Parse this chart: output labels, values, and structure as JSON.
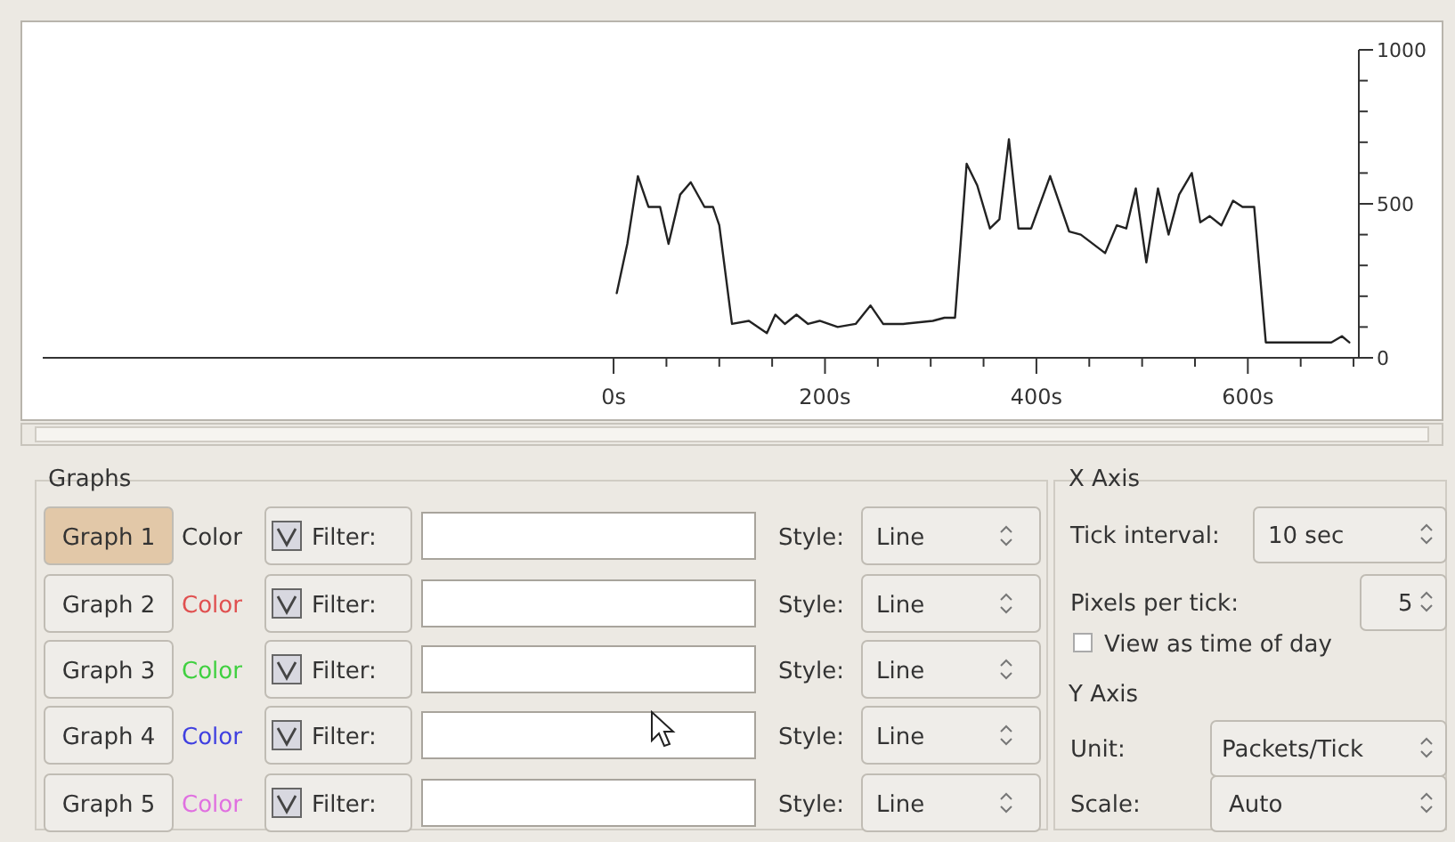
{
  "chart_data": [
    {
      "type": "line",
      "x": [
        3,
        13,
        23,
        33,
        44,
        52,
        63,
        73,
        86,
        94,
        100,
        112,
        128,
        145,
        153,
        162,
        173,
        184,
        195,
        212,
        229,
        243,
        255,
        274,
        302,
        313,
        323,
        334,
        344,
        356,
        365,
        374,
        383,
        395,
        413,
        431,
        442,
        465,
        476,
        485,
        494,
        504,
        515,
        525,
        535,
        547,
        555,
        564,
        575,
        586,
        595,
        606,
        617,
        634,
        656,
        679,
        689,
        696
      ],
      "series": [
        {
          "color": "#222222",
          "values": [
            210,
            370,
            590,
            490,
            490,
            370,
            530,
            570,
            490,
            490,
            430,
            110,
            120,
            80,
            140,
            110,
            140,
            110,
            120,
            100,
            110,
            170,
            110,
            110,
            120,
            130,
            130,
            630,
            560,
            420,
            450,
            710,
            420,
            420,
            590,
            410,
            400,
            340,
            430,
            420,
            550,
            310,
            550,
            400,
            530,
            600,
            440,
            460,
            430,
            510,
            490,
            490,
            50,
            50,
            50,
            50,
            70,
            50
          ]
        }
      ],
      "xlim": [
        -540,
        705
      ],
      "xticks": [
        {
          "value": 0,
          "label": "0s"
        },
        {
          "value": 50,
          "label": null
        },
        {
          "value": 100,
          "label": null
        },
        {
          "value": 150,
          "label": null
        },
        {
          "value": 200,
          "label": "200s"
        },
        {
          "value": 250,
          "label": null
        },
        {
          "value": 300,
          "label": null
        },
        {
          "value": 350,
          "label": null
        },
        {
          "value": 400,
          "label": "400s"
        },
        {
          "value": 450,
          "label": null
        },
        {
          "value": 500,
          "label": null
        },
        {
          "value": 550,
          "label": null
        },
        {
          "value": 600,
          "label": "600s"
        },
        {
          "value": 650,
          "label": null
        },
        {
          "value": 700,
          "label": null
        }
      ],
      "ylim": [
        0,
        1000
      ],
      "yticks": [
        0,
        {
          "value": 100,
          "label": null
        },
        {
          "value": 200,
          "label": null
        },
        {
          "value": 300,
          "label": null
        },
        {
          "value": 400,
          "label": null
        },
        500,
        {
          "value": 600,
          "label": null
        },
        {
          "value": 700,
          "label": null
        },
        {
          "value": 800,
          "label": null
        },
        {
          "value": 900,
          "label": null
        },
        1000
      ]
    },
    {
      "type": "other",
      "annotations": [
        "Graphs",
        "Graph 1",
        "Color",
        "Filter:",
        "Style:",
        "Line",
        "Graph 2",
        "Color",
        "Filter:",
        "Style:",
        "Line",
        "Graph 3",
        "Color",
        "Filter:",
        "Style:",
        "Line",
        "Graph 4",
        "Color",
        "Filter:",
        "Style:",
        "Line",
        "Graph 5",
        "Color",
        "Filter:",
        "Style:",
        "Line",
        "X Axis",
        "Tick interval:",
        "10 sec",
        "Pixels per tick:",
        "5",
        "View as time of day",
        "Y Axis",
        "Unit:",
        "Packets/Tick",
        "Scale:",
        "Auto"
      ]
    }
  ]
}
